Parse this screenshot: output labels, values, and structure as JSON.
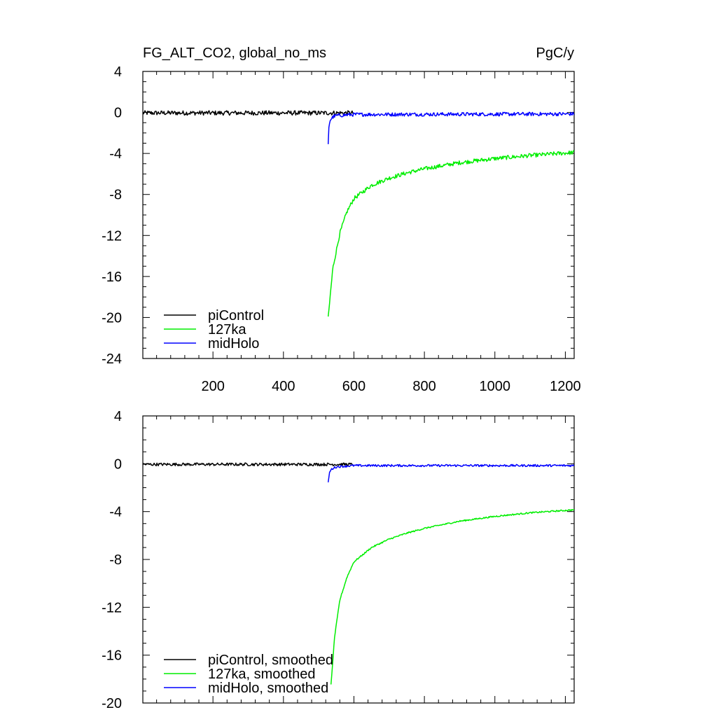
{
  "chart_data": [
    {
      "type": "line",
      "title": "FG_ALT_CO2, global_no_ms",
      "units": "PgC/y",
      "ylim": [
        -24,
        4
      ],
      "yticks": [
        4,
        0,
        -4,
        -8,
        -12,
        -16,
        -20,
        -24
      ],
      "xlim": [
        1,
        1225
      ],
      "xticks": [
        200,
        400,
        600,
        800,
        1000,
        1200
      ],
      "show_xtick_labels": true,
      "grid": false,
      "legend_position": "bottom-left",
      "series": [
        {
          "name": "piControl",
          "color": "#000000",
          "x": [
            1,
            600
          ],
          "mean": [
            -0.05,
            -0.05
          ],
          "noise_amplitude": 0.22
        },
        {
          "name": "127ka",
          "color": "#00ee00",
          "x": [
            527,
            540,
            560,
            580,
            600,
            650,
            700,
            750,
            800,
            900,
            1000,
            1100,
            1225
          ],
          "y": [
            -20.1,
            -15.2,
            -11.8,
            -9.7,
            -8.4,
            -7.1,
            -6.4,
            -5.9,
            -5.5,
            -4.9,
            -4.5,
            -4.2,
            -3.9
          ],
          "noise_amplitude": 0.2
        },
        {
          "name": "midHolo",
          "color": "#0000ff",
          "x": [
            527,
            529,
            532,
            536,
            542,
            552,
            575,
            600,
            1225
          ],
          "y": [
            -3.2,
            -1.4,
            -0.8,
            -0.6,
            -0.4,
            -0.3,
            -0.25,
            -0.2,
            -0.15
          ],
          "noise_amplitude": 0.18
        }
      ]
    },
    {
      "type": "line",
      "title": "",
      "units": "",
      "ylim": [
        -20,
        4
      ],
      "yticks": [
        4,
        0,
        -4,
        -8,
        -12,
        -16,
        -20
      ],
      "xlim": [
        1,
        1225
      ],
      "xticks": [
        200,
        400,
        600,
        800,
        1000,
        1200
      ],
      "show_xtick_labels": false,
      "grid": false,
      "legend_position": "bottom-left",
      "series": [
        {
          "name": "piControl, smoothed",
          "color": "#000000",
          "x": [
            1,
            600
          ],
          "mean": [
            -0.05,
            -0.05
          ],
          "noise_amplitude": 0.12
        },
        {
          "name": "127ka, smoothed",
          "color": "#00ee00",
          "x": [
            535,
            545,
            560,
            580,
            600,
            650,
            700,
            750,
            800,
            900,
            1000,
            1100,
            1225
          ],
          "y": [
            -18.5,
            -14.5,
            -11.4,
            -9.5,
            -8.2,
            -7.0,
            -6.3,
            -5.8,
            -5.4,
            -4.8,
            -4.4,
            -4.1,
            -3.85
          ],
          "noise_amplitude": 0.06
        },
        {
          "name": "midHolo, smoothed",
          "color": "#0000ff",
          "x": [
            527,
            530,
            535,
            542,
            552,
            575,
            600,
            1225
          ],
          "y": [
            -1.6,
            -0.8,
            -0.5,
            -0.35,
            -0.25,
            -0.2,
            -0.15,
            -0.15
          ],
          "noise_amplitude": 0.09
        }
      ]
    }
  ]
}
